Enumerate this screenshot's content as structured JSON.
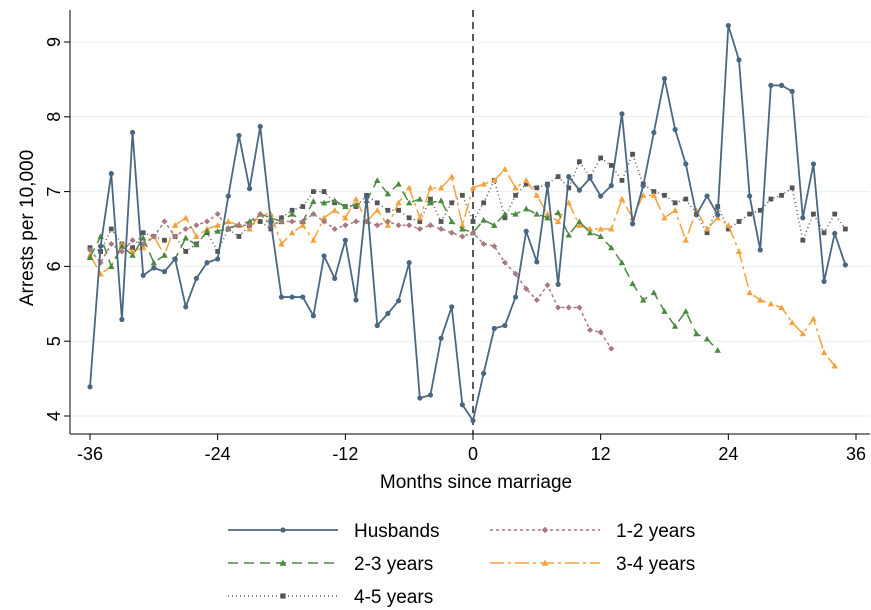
{
  "chart_data": {
    "type": "line",
    "xlabel": "Months since marriage",
    "ylabel": "Arrests per 10,000",
    "xlim": [
      -36,
      36
    ],
    "ylim": [
      3.8,
      9.35
    ],
    "xticks": [
      -36,
      -24,
      -12,
      0,
      12,
      24,
      36
    ],
    "xtick_labels": [
      "-36",
      "-24",
      "-12",
      "0",
      "12",
      "24",
      "36"
    ],
    "yticks": [
      4,
      5,
      6,
      7,
      8,
      9
    ],
    "ytick_labels": [
      "4",
      "5",
      "6",
      "7",
      "8",
      "9"
    ],
    "grid": "horizontal",
    "reference_line": {
      "x": 0,
      "style": "dashed"
    },
    "legend_position": "bottom",
    "series": [
      {
        "name": "Husbands",
        "color": "#4a6782",
        "marker": "circle",
        "dash": "solid",
        "x_start": -36,
        "values": [
          4.39,
          6.27,
          7.24,
          5.29,
          7.79,
          5.88,
          5.98,
          5.93,
          6.1,
          5.46,
          5.84,
          6.05,
          6.1,
          6.94,
          7.75,
          7.04,
          7.87,
          6.59,
          5.59,
          5.59,
          5.59,
          5.34,
          6.14,
          5.84,
          6.35,
          5.55,
          6.92,
          5.21,
          5.37,
          5.54,
          6.05,
          4.24,
          4.28,
          5.04,
          5.46,
          4.15,
          3.94,
          4.57,
          5.17,
          5.21,
          5.59,
          6.47,
          6.06,
          7.08,
          5.76,
          7.2,
          7.02,
          7.18,
          6.94,
          7.08,
          8.04,
          6.57,
          7.08,
          7.79,
          8.51,
          7.83,
          7.37,
          6.69,
          6.94,
          6.69,
          9.22,
          8.76,
          6.94,
          6.22,
          8.42,
          8.42,
          8.34,
          6.65,
          7.37,
          5.8,
          6.44,
          6.02
        ]
      },
      {
        "name": "1-2 years",
        "color": "#a8787f",
        "marker": "diamond",
        "dash": "3 3",
        "x_start": -36,
        "values": [
          6.22,
          6.05,
          6.3,
          6.2,
          6.35,
          6.3,
          6.4,
          6.6,
          6.4,
          6.5,
          6.55,
          6.6,
          6.7,
          6.5,
          6.55,
          6.55,
          6.7,
          6.55,
          6.6,
          6.6,
          6.6,
          6.7,
          6.6,
          6.5,
          6.55,
          6.6,
          6.6,
          6.55,
          6.6,
          6.55,
          6.55,
          6.5,
          6.55,
          6.5,
          6.45,
          6.4,
          6.45,
          6.3,
          6.27,
          6.05,
          5.9,
          5.7,
          5.55,
          5.75,
          5.45,
          5.45,
          5.45,
          5.15,
          5.12,
          4.9
        ]
      },
      {
        "name": "2-3 years",
        "color": "#4a8a3e",
        "marker": "triangle",
        "dash": "10 6",
        "x_start": -36,
        "values": [
          6.12,
          6.4,
          6.0,
          6.27,
          6.15,
          6.38,
          6.05,
          6.15,
          6.1,
          6.38,
          6.29,
          6.47,
          6.47,
          6.51,
          6.56,
          6.6,
          6.7,
          6.65,
          6.6,
          6.7,
          6.6,
          6.87,
          6.85,
          6.88,
          6.8,
          6.82,
          6.88,
          7.15,
          6.97,
          7.1,
          6.85,
          6.9,
          6.85,
          6.88,
          6.6,
          6.5,
          6.45,
          6.62,
          6.55,
          6.7,
          6.7,
          6.77,
          6.7,
          6.65,
          6.72,
          6.42,
          6.6,
          6.45,
          6.4,
          6.25,
          6.05,
          5.77,
          5.55,
          5.65,
          5.4,
          5.2,
          5.4,
          5.1,
          5.03,
          4.88
        ]
      },
      {
        "name": "3-4 years",
        "color": "#f5a23c",
        "marker": "triangle",
        "dash": "14 4 3 4",
        "x_start": -36,
        "values": [
          6.15,
          5.9,
          6.0,
          6.3,
          6.2,
          6.25,
          6.4,
          6.15,
          6.55,
          6.65,
          6.4,
          6.5,
          6.55,
          6.6,
          6.55,
          6.5,
          6.7,
          6.7,
          6.3,
          6.45,
          6.55,
          6.35,
          6.65,
          6.75,
          6.65,
          6.9,
          6.6,
          6.75,
          6.55,
          6.85,
          7.05,
          6.65,
          7.05,
          7.05,
          7.2,
          6.55,
          7.05,
          7.1,
          7.15,
          7.3,
          7.05,
          7.15,
          6.95,
          6.7,
          6.6,
          6.85,
          6.55,
          6.5,
          6.5,
          6.5,
          6.9,
          6.65,
          6.95,
          6.95,
          6.65,
          6.75,
          6.35,
          6.75,
          6.5,
          6.65,
          6.55,
          6.2,
          5.65,
          5.55,
          5.5,
          5.45,
          5.25,
          5.1,
          5.3,
          4.85,
          4.67
        ]
      },
      {
        "name": "4-5 years",
        "color": "#555555",
        "marker": "square",
        "dash": "1 3",
        "x_start": -36,
        "values": [
          6.25,
          6.2,
          6.5,
          6.3,
          6.25,
          6.45,
          6.4,
          6.35,
          6.4,
          6.2,
          6.3,
          6.45,
          6.2,
          6.5,
          6.4,
          6.55,
          6.6,
          6.5,
          6.65,
          6.75,
          6.8,
          7.0,
          7.0,
          6.85,
          6.8,
          6.8,
          6.95,
          6.85,
          6.75,
          6.75,
          6.65,
          6.6,
          6.9,
          6.6,
          6.85,
          6.95,
          6.6,
          6.85,
          7.15,
          6.65,
          6.95,
          7.1,
          7.05,
          7.1,
          7.2,
          7.05,
          7.4,
          7.2,
          7.45,
          7.35,
          7.15,
          7.5,
          7.1,
          7.0,
          6.95,
          6.85,
          6.9,
          6.7,
          6.45,
          6.8,
          6.5,
          6.6,
          6.7,
          6.75,
          6.9,
          6.95,
          7.05,
          6.35,
          6.7,
          6.45,
          6.7,
          6.5
        ]
      }
    ],
    "legend": [
      {
        "series": 0,
        "label": "Husbands"
      },
      {
        "series": 1,
        "label": "1-2 years"
      },
      {
        "series": 2,
        "label": "2-3 years"
      },
      {
        "series": 3,
        "label": "3-4 years"
      },
      {
        "series": 4,
        "label": "4-5 years"
      }
    ]
  }
}
